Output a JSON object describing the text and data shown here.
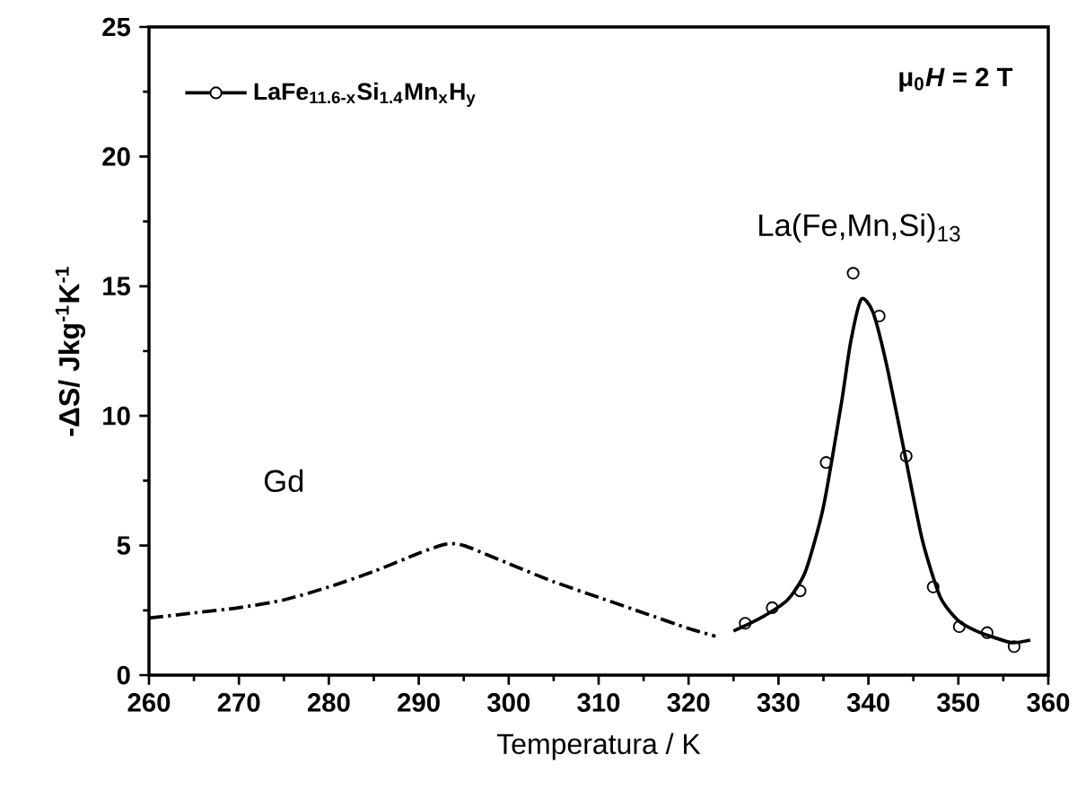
{
  "chart_data": {
    "type": "line",
    "xlabel": "Temperatura / K",
    "ylabel": "-ΔS/ Jkg$^{-1}$K$^{-1}$",
    "xlim": [
      260,
      360
    ],
    "ylim": [
      0,
      25
    ],
    "xticks": [
      260,
      270,
      280,
      290,
      300,
      310,
      320,
      330,
      340,
      350,
      360
    ],
    "yticks": [
      0,
      5,
      10,
      15,
      20,
      25
    ],
    "legend": "top left",
    "grid": false,
    "annotations": [
      "μ$_{0}$*H* = 2 T",
      "Gd",
      "La(Fe,Mn,Si)$_{13}$"
    ],
    "series": [
      {
        "color": "#000000",
        "line_style": "dashed",
        "marker": "none",
        "x": [
          260,
          265,
          270,
          275,
          280,
          285,
          290,
          293,
          295,
          300,
          305,
          310,
          315,
          320,
          323
        ],
        "values": [
          2.2,
          2.4,
          2.6,
          2.9,
          3.4,
          4.0,
          4.7,
          5.05,
          5.0,
          4.3,
          3.6,
          3.0,
          2.4,
          1.8,
          1.5
        ]
      },
      {
        "color": "#000000",
        "line_style": "solid",
        "marker": "none",
        "x": [
          325,
          328,
          331,
          333,
          335,
          337,
          338,
          339.2,
          340.5,
          342,
          344,
          346,
          348,
          350,
          352,
          354,
          356,
          358
        ],
        "values": [
          1.7,
          2.2,
          2.9,
          4.0,
          6.5,
          10.5,
          12.8,
          14.5,
          14.0,
          12.0,
          8.6,
          5.2,
          3.0,
          2.1,
          1.7,
          1.45,
          1.25,
          1.35
        ]
      },
      {
        "type": "scatter",
        "name": "LaFe$_{11.6-x}$Si$_{1.4}$Mn$_{x}$H$_{y}$",
        "color": "#000000",
        "marker": "circle",
        "x": [
          326.3,
          329.3,
          332.4,
          335.3,
          338.3,
          341.2,
          344.2,
          347.2,
          350.1,
          353.2,
          356.2
        ],
        "values": [
          2.0,
          2.6,
          3.25,
          8.2,
          15.5,
          13.85,
          8.45,
          3.4,
          1.87,
          1.64,
          1.1
        ]
      }
    ]
  }
}
